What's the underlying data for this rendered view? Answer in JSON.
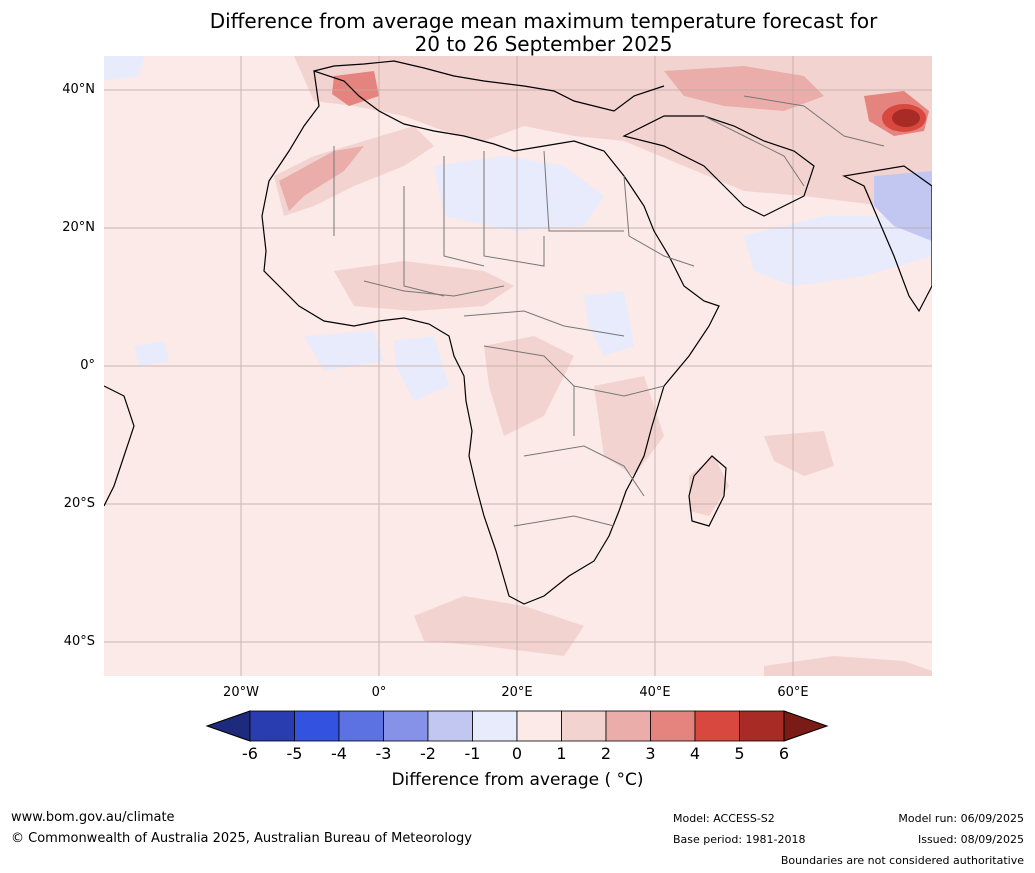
{
  "title": {
    "line1": "Difference from average mean maximum temperature forecast for",
    "line2": "20 to 26 September 2025"
  },
  "map": {
    "lat_labels": [
      "40°N",
      "20°N",
      "0°",
      "20°S",
      "40°S"
    ],
    "lon_labels": [
      "20°W",
      "0°",
      "20°E",
      "40°E",
      "60°E"
    ],
    "colors": {
      "ocean_land_base": "#fbeae8",
      "cool_1": "#e8ebfb",
      "cool_2": "#c2c7f2",
      "warm_2": "#f2d3d0",
      "warm_3": "#eaadaa",
      "warm_4": "#e5837e",
      "warm_5": "#d9483f",
      "warm_6": "#a82c25"
    }
  },
  "colorbar": {
    "ticks": [
      "-6",
      "-5",
      "-4",
      "-3",
      "-2",
      "-1",
      "0",
      "1",
      "2",
      "3",
      "4",
      "5",
      "6"
    ],
    "colors": [
      "#1e2a7c",
      "#2a3db0",
      "#3352e0",
      "#5c72e3",
      "#8592e8",
      "#c2c7f2",
      "#e8ebfb",
      "#fbeae8",
      "#f2d3d0",
      "#eaadaa",
      "#e5837e",
      "#d9483f",
      "#a82c25",
      "#7a1b16"
    ],
    "label": "Difference from average ( °C)"
  },
  "footer": {
    "website": "www.bom.gov.au/climate",
    "copyright": "© Commonwealth of Australia 2025, Australian Bureau of Meteorology",
    "model": "Model: ACCESS-S2",
    "base_period": "Base period: 1981-2018",
    "model_run": "Model run: 06/09/2025",
    "issued": "Issued: 08/09/2025",
    "disclaimer": "Boundaries are not considered authoritative"
  }
}
